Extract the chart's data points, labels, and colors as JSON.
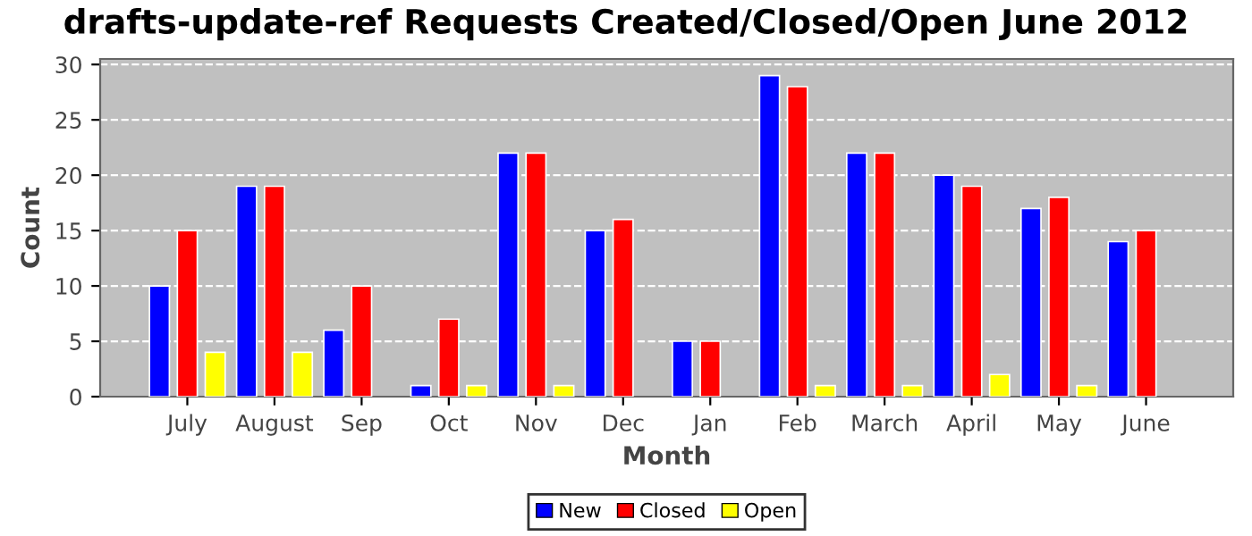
{
  "chart_data": {
    "type": "bar",
    "title": "drafts-update-ref Requests Created/Closed/Open June 2012",
    "xlabel": "Month",
    "ylabel": "Count",
    "categories": [
      "July",
      "August",
      "Sep",
      "Oct",
      "Nov",
      "Dec",
      "Jan",
      "Feb",
      "March",
      "April",
      "May",
      "June"
    ],
    "series": [
      {
        "name": "New",
        "color": "#0000ff",
        "values": [
          10,
          19,
          6,
          1,
          22,
          15,
          5,
          29,
          22,
          20,
          17,
          14
        ]
      },
      {
        "name": "Closed",
        "color": "#ff0000",
        "values": [
          15,
          19,
          10,
          7,
          22,
          16,
          5,
          28,
          22,
          19,
          18,
          15
        ]
      },
      {
        "name": "Open",
        "color": "#ffff00",
        "values": [
          4,
          4,
          0,
          1,
          1,
          0,
          0,
          1,
          1,
          2,
          1,
          0
        ]
      }
    ],
    "ylim": [
      0,
      30.5
    ],
    "yticks": [
      0,
      5,
      10,
      15,
      20,
      25,
      30
    ],
    "grid": "y",
    "legend": "bottom"
  }
}
